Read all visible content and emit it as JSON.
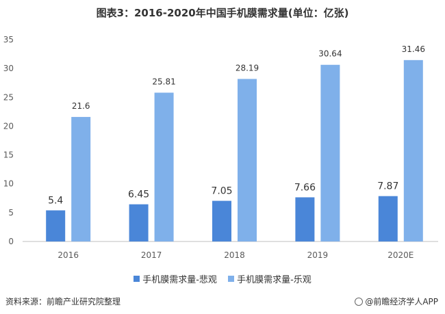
{
  "title": "图表3：2016-2020年中国手机膜需求量(单位：亿张)",
  "source": "资料来源：前瞻产业研究院整理",
  "brand": "@前瞻经济学人APP",
  "colors": {
    "pessimistic": "#4a86d8",
    "optimistic": "#7fb0ea",
    "axis": "#bfbfbf",
    "text": "#595959"
  },
  "chart_data": {
    "type": "bar",
    "categories": [
      "2016",
      "2017",
      "2018",
      "2019",
      "2020E"
    ],
    "series": [
      {
        "name": "手机膜需求量-悲观",
        "values": [
          5.4,
          6.45,
          7.05,
          7.66,
          7.87
        ],
        "labels": [
          "5.4",
          "6.45",
          "7.05",
          "7.66",
          "7.87"
        ]
      },
      {
        "name": "手机膜需求量-乐观",
        "values": [
          21.6,
          25.81,
          28.19,
          30.64,
          31.46
        ],
        "labels": [
          "21.6",
          "25.81",
          "28.19",
          "30.64",
          "31.46"
        ]
      }
    ],
    "ylim": [
      0,
      35
    ],
    "yticks": [
      "0",
      "5",
      "10",
      "15",
      "20",
      "25",
      "30",
      "35"
    ],
    "grid": false,
    "legend_position": "bottom"
  }
}
